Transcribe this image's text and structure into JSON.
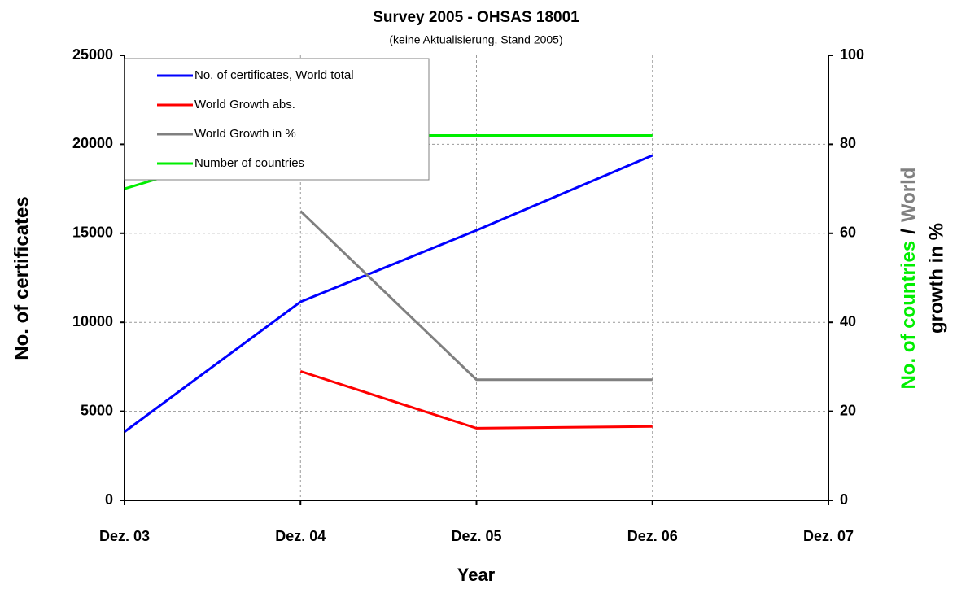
{
  "chart_data": {
    "type": "line",
    "title": "Survey 2005 - OHSAS 18001",
    "subtitle": "(keine Aktualisierung, Stand 2005)",
    "x_label": "Year",
    "y_label": "No. of certificates",
    "y2_label_parts": [
      {
        "text": "No. of countries",
        "color": "#00ee00"
      },
      {
        "text": "/",
        "color": "#000000"
      },
      {
        "text": "World",
        "color": "#808080"
      },
      {
        "text": "growth in %",
        "color": "#808080"
      }
    ],
    "categories": [
      "Dez. 03",
      "Dez. 04",
      "Dez. 05",
      "Dez. 06",
      "Dez. 07"
    ],
    "series": [
      {
        "name": "No. of certificates, World total",
        "color": "#0000ff",
        "values": [
          3850,
          11150,
          15170,
          19380,
          null
        ]
      },
      {
        "name": "World Growth abs.",
        "color": "#ff0000",
        "values": [
          null,
          7250,
          4050,
          4150,
          null
        ]
      },
      {
        "name": "World Growth in %",
        "color": "#808080",
        "axis": "y2",
        "values": [
          null,
          65,
          27.1,
          27.1,
          null
        ]
      },
      {
        "name": "Number of countries",
        "color": "#00ee00",
        "axis": "y2",
        "values": [
          70,
          82,
          82,
          82,
          null
        ]
      }
    ],
    "ylim": [
      0,
      25000
    ],
    "yticks": [
      0,
      5000,
      10000,
      15000,
      20000,
      25000
    ],
    "y2lim": [
      0,
      100
    ],
    "y2ticks": [
      0,
      20,
      40,
      60,
      80,
      100
    ],
    "grid": true,
    "legend": "upper left"
  }
}
